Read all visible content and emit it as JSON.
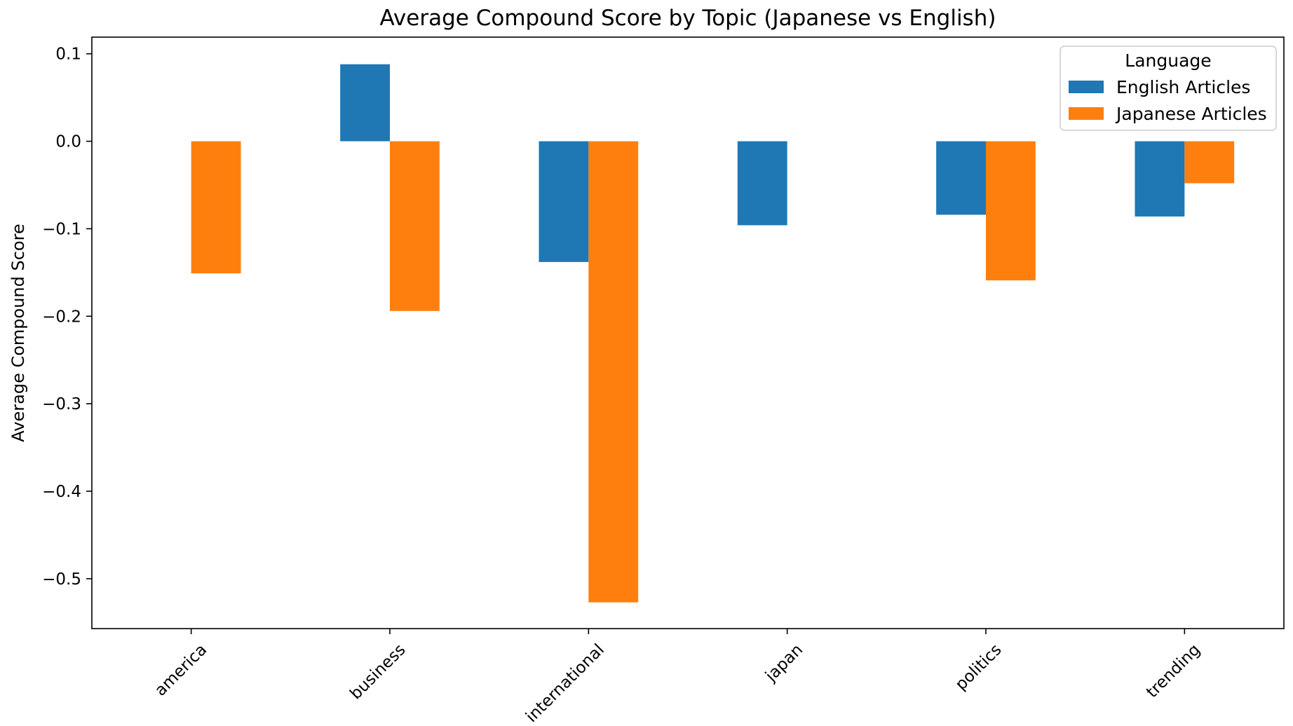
{
  "chart_data": {
    "type": "bar",
    "title": "Average Compound Score by Topic (Japanese vs English)",
    "xlabel": "",
    "ylabel": "Average Compound Score",
    "categories": [
      "america",
      "business",
      "international",
      "japan",
      "politics",
      "trending"
    ],
    "series": [
      {
        "name": "English Articles",
        "color": "#1f77b4",
        "values": [
          null,
          0.088,
          -0.138,
          -0.096,
          -0.084,
          -0.086
        ]
      },
      {
        "name": "Japanese Articles",
        "color": "#ff7f0e",
        "values": [
          -0.151,
          -0.194,
          -0.527,
          null,
          -0.159,
          -0.048
        ]
      }
    ],
    "yticks": [
      "0.1",
      "0.0",
      "−0.1",
      "−0.2",
      "−0.3",
      "−0.4",
      "−0.5"
    ],
    "ylim": [
      -0.557,
      0.119
    ],
    "legend": {
      "title": "Language",
      "position": "top-right"
    },
    "grid": false
  }
}
